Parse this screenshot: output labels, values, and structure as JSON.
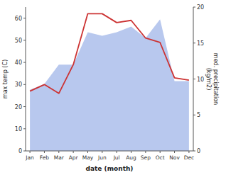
{
  "chart_data": {
    "type": "line",
    "xlabel": "date (month)",
    "ylabel": "max temp (C)",
    "y2label": "med. precipitation\n(kg/m2)",
    "categories": [
      "Jan",
      "Feb",
      "Mar",
      "Apr",
      "May",
      "Jun",
      "Jul",
      "Aug",
      "Sep",
      "Oct",
      "Nov",
      "Dec"
    ],
    "series": [
      {
        "type": "area",
        "axis": "y2",
        "color": "#b8c8ee",
        "values": [
          8.5,
          9.3,
          12,
          12,
          16.5,
          16,
          16.5,
          17.3,
          15.7,
          18.3,
          9.7,
          9.7
        ]
      },
      {
        "type": "line",
        "color": "#cc3333",
        "values": [
          27,
          30,
          26,
          39,
          62,
          62,
          58,
          59,
          51,
          49,
          33,
          32
        ]
      }
    ],
    "ylim": [
      0,
      65
    ],
    "yticks": [
      0,
      10,
      20,
      30,
      40,
      50,
      60
    ],
    "y2lim": [
      0,
      20
    ],
    "y2ticks": [
      0,
      5,
      10,
      15,
      20
    ]
  }
}
